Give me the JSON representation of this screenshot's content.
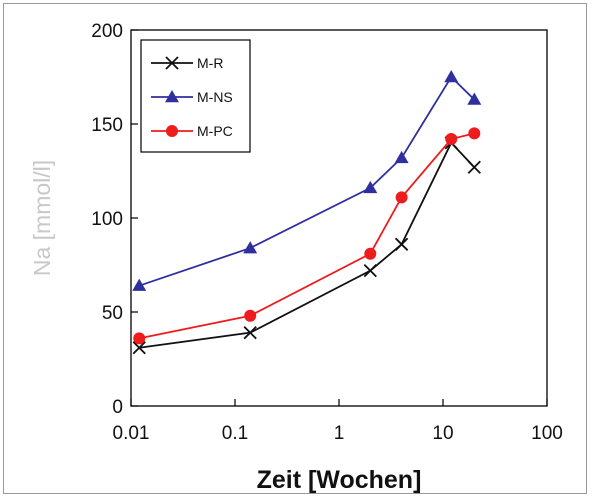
{
  "chart_data": {
    "type": "line",
    "xlabel": "Zeit [Wochen]",
    "ylabel": "Na [mmol/l]",
    "xscale": "log",
    "xlim": [
      0.01,
      100
    ],
    "ylim": [
      0,
      200
    ],
    "x_ticks": [
      "0.01",
      "0.1",
      "1",
      "10",
      "100"
    ],
    "y_ticks": [
      "0",
      "50",
      "100",
      "150",
      "200"
    ],
    "grid": false,
    "legend_position": "top-left",
    "series": [
      {
        "name": "M-R",
        "marker": "x",
        "color": "#111111",
        "x": [
          0.012,
          0.14,
          2,
          4,
          12,
          20
        ],
        "y": [
          31,
          39,
          72,
          86,
          140,
          127
        ]
      },
      {
        "name": "M-NS",
        "marker": "triangle",
        "color": "#2f2fa0",
        "x": [
          0.012,
          0.14,
          2,
          4,
          12,
          20
        ],
        "y": [
          64,
          84,
          116,
          132,
          175,
          163
        ]
      },
      {
        "name": "M-PC",
        "marker": "circle",
        "color": "#ee1c1c",
        "x": [
          0.012,
          0.14,
          2,
          4,
          12,
          20
        ],
        "y": [
          36,
          48,
          81,
          111,
          142,
          145
        ]
      }
    ]
  }
}
